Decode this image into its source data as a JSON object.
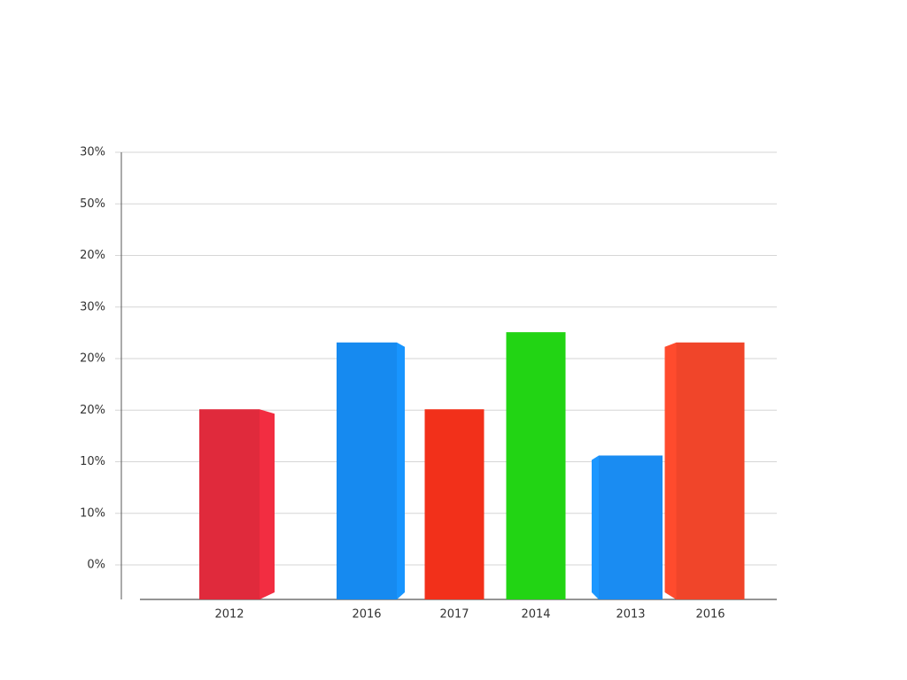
{
  "chart_data": {
    "type": "bar",
    "categories": [
      "2012",
      "2016",
      "2017",
      "2014",
      "2013",
      "2016"
    ],
    "series": [
      {
        "values": [
          30,
          43,
          30,
          45,
          21,
          43
        ],
        "colors": [
          "#e02a3c",
          "#168af0",
          "#f2301a",
          "#22d414",
          "#1a8cf2",
          "#f0452a"
        ]
      }
    ],
    "y_axis_labels": [
      "30%",
      "50%",
      "20%",
      "30%",
      "20%",
      "20%",
      "10%",
      "10%",
      "0%"
    ],
    "ylim": [
      -7,
      80
    ],
    "grid": true
  }
}
